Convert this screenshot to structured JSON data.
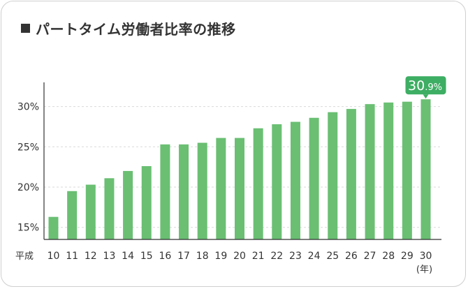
{
  "chart_data": {
    "type": "bar",
    "title": "パートタイム労働者比率の推移",
    "era_label": "平成",
    "x_unit": "(年)",
    "categories": [
      "10",
      "11",
      "12",
      "13",
      "14",
      "15",
      "16",
      "17",
      "18",
      "19",
      "20",
      "21",
      "22",
      "23",
      "24",
      "25",
      "26",
      "27",
      "28",
      "29",
      "30"
    ],
    "values": [
      16.3,
      19.5,
      20.3,
      21.1,
      22.0,
      22.6,
      25.3,
      25.3,
      25.5,
      26.1,
      26.1,
      27.3,
      27.8,
      28.1,
      28.6,
      29.3,
      29.7,
      30.3,
      30.5,
      30.6,
      30.9
    ],
    "yticks": [
      "15%",
      "20%",
      "25%",
      "30%"
    ],
    "ytick_values": [
      15,
      20,
      25,
      30
    ],
    "ylim": [
      13.5,
      33.0
    ],
    "grid": true,
    "bar_color": "#6abf73",
    "callout": {
      "main": "30",
      "decimal": ".9%",
      "category": "30",
      "color": "#3dae63"
    }
  }
}
